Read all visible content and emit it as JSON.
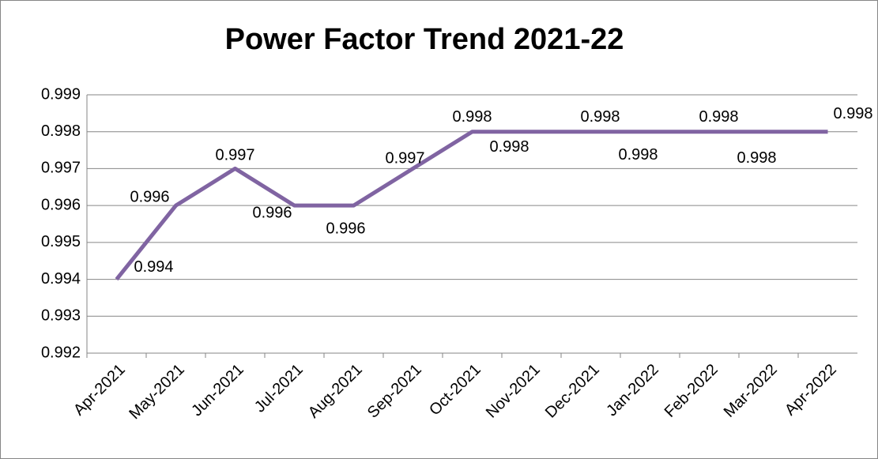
{
  "chart_data": {
    "type": "line",
    "title": "Power Factor Trend 2021-22",
    "categories": [
      "Apr-2021",
      "May-2021",
      "Jun-2021",
      "Jul-2021",
      "Aug-2021",
      "Sep-2021",
      "Oct-2021",
      "Nov-2021",
      "Dec-2021",
      "Jan-2022",
      "Feb-2022",
      "Mar-2022",
      "Apr-2022"
    ],
    "values": [
      0.994,
      0.996,
      0.997,
      0.996,
      0.996,
      0.997,
      0.998,
      0.998,
      0.998,
      0.998,
      0.998,
      0.998,
      0.998
    ],
    "color": "#8064a2",
    "ylim": [
      0.992,
      0.999
    ],
    "yticks": [
      0.992,
      0.993,
      0.994,
      0.995,
      0.996,
      0.997,
      0.998,
      0.999
    ],
    "grid": true
  }
}
